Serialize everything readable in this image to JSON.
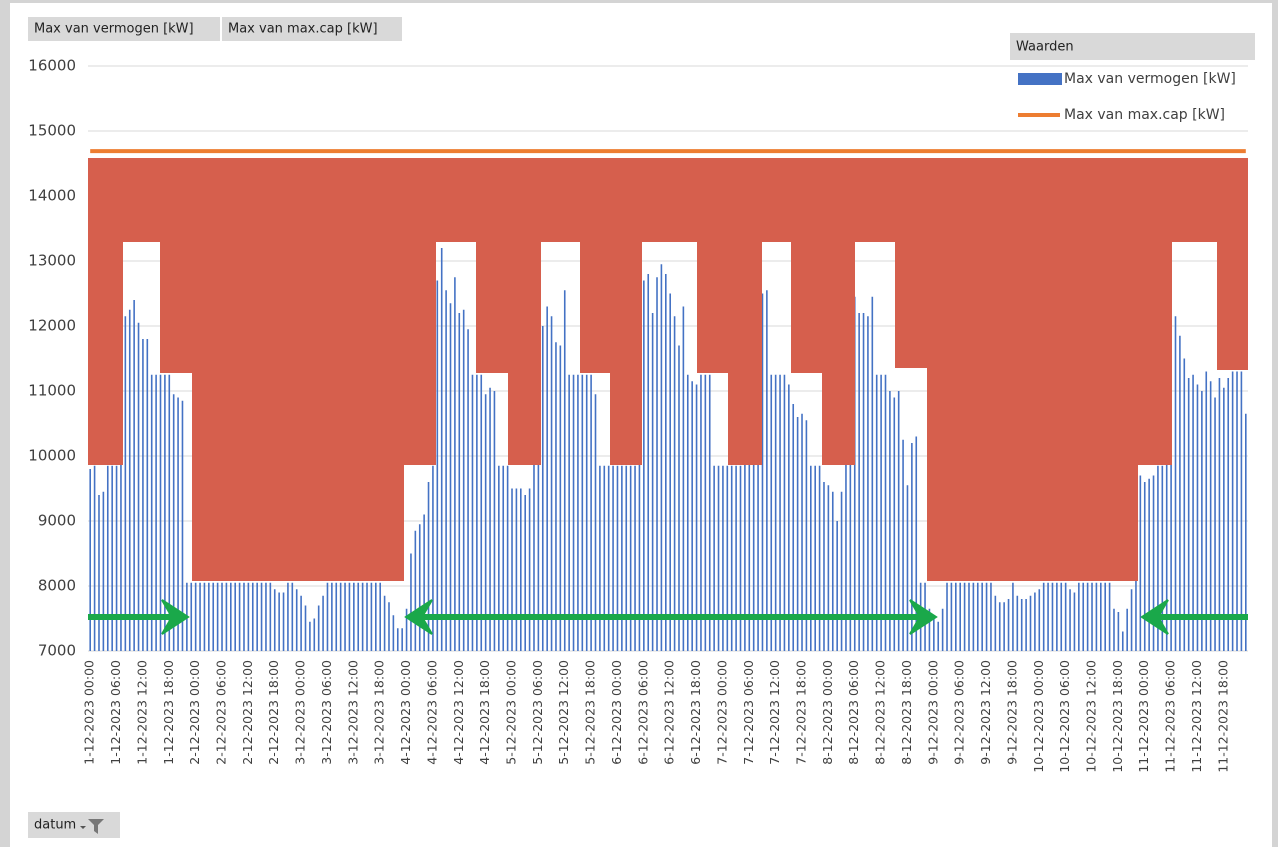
{
  "pivot_buttons": [
    "Max van vermogen [kW]",
    "Max van max.cap [kW]"
  ],
  "filter_button": "datum",
  "legend_title": "Waarden",
  "chart_data": {
    "type": "bar",
    "categories": [
      "1-12-2023 00:00",
      null,
      null,
      null,
      null,
      null,
      "1-12-2023 06:00",
      null,
      null,
      null,
      null,
      null,
      "1-12-2023 12:00",
      null,
      null,
      null,
      null,
      null,
      "1-12-2023 18:00",
      null,
      null,
      null,
      null,
      null,
      "2-12-2023 00:00",
      null,
      null,
      null,
      null,
      null,
      "2-12-2023 06:00",
      null,
      null,
      null,
      null,
      null,
      "2-12-2023 12:00",
      null,
      null,
      null,
      null,
      null,
      "2-12-2023 18:00",
      null,
      null,
      null,
      null,
      null,
      "3-12-2023 00:00",
      null,
      null,
      null,
      null,
      null,
      "3-12-2023 06:00",
      null,
      null,
      null,
      null,
      null,
      "3-12-2023 12:00",
      null,
      null,
      null,
      null,
      null,
      "3-12-2023 18:00",
      null,
      null,
      null,
      null,
      null,
      "4-12-2023 00:00",
      null,
      null,
      null,
      null,
      null,
      "4-12-2023 06:00",
      null,
      null,
      null,
      null,
      null,
      "4-12-2023 12:00",
      null,
      null,
      null,
      null,
      null,
      "4-12-2023 18:00",
      null,
      null,
      null,
      null,
      null,
      "5-12-2023 00:00",
      null,
      null,
      null,
      null,
      null,
      "5-12-2023 06:00",
      null,
      null,
      null,
      null,
      null,
      "5-12-2023 12:00",
      null,
      null,
      null,
      null,
      null,
      "5-12-2023 18:00",
      null,
      null,
      null,
      null,
      null,
      "6-12-2023 00:00",
      null,
      null,
      null,
      null,
      null,
      "6-12-2023 06:00",
      null,
      null,
      null,
      null,
      null,
      "6-12-2023 12:00",
      null,
      null,
      null,
      null,
      null,
      "6-12-2023 18:00",
      null,
      null,
      null,
      null,
      null,
      "7-12-2023 00:00",
      null,
      null,
      null,
      null,
      null,
      "7-12-2023 06:00",
      null,
      null,
      null,
      null,
      null,
      "7-12-2023 12:00",
      null,
      null,
      null,
      null,
      null,
      "7-12-2023 18:00",
      null,
      null,
      null,
      null,
      null,
      "8-12-2023 00:00",
      null,
      null,
      null,
      null,
      null,
      "8-12-2023 06:00",
      null,
      null,
      null,
      null,
      null,
      "8-12-2023 12:00",
      null,
      null,
      null,
      null,
      null,
      "8-12-2023 18:00",
      null,
      null,
      null,
      null,
      null,
      "9-12-2023 00:00",
      null,
      null,
      null,
      null,
      null,
      "9-12-2023 06:00",
      null,
      null,
      null,
      null,
      null,
      "9-12-2023 12:00",
      null,
      null,
      null,
      null,
      null,
      "9-12-2023 18:00",
      null,
      null,
      null,
      null,
      null,
      "10-12-2023 00:00",
      null,
      null,
      null,
      null,
      null,
      "10-12-2023 06:00",
      null,
      null,
      null,
      null,
      null,
      "10-12-2023 12:00",
      null,
      null,
      null,
      null,
      null,
      "10-12-2023 18:00",
      null,
      null,
      null,
      null,
      null,
      "11-12-2023 00:00",
      null,
      null,
      null,
      null,
      null,
      "11-12-2023 06:00",
      null,
      null,
      null,
      null,
      null,
      "11-12-2023 12:00",
      null,
      null,
      null,
      null,
      null,
      "11-12-2023 18:00",
      null,
      null,
      null,
      null,
      null
    ],
    "series": [
      {
        "name": "Max van vermogen [kW]",
        "color": "#4472c4",
        "type": "bar",
        "values": [
          9800,
          9850,
          9400,
          9450,
          9850,
          9850,
          9850,
          12750,
          12150,
          12250,
          12400,
          12050,
          11800,
          11800,
          11250,
          11250,
          11250,
          11250,
          11250,
          10950,
          10900,
          10850,
          8050,
          8050,
          8050,
          8050,
          8050,
          8050,
          8050,
          8050,
          8050,
          8050,
          8050,
          8050,
          8050,
          8050,
          8050,
          8050,
          8050,
          8050,
          8050,
          8050,
          7950,
          7900,
          7900,
          8050,
          8050,
          7950,
          7850,
          7700,
          7450,
          7500,
          7700,
          7850,
          8050,
          8050,
          8050,
          8050,
          8050,
          8050,
          8050,
          8050,
          8050,
          8050,
          8050,
          8050,
          8050,
          7850,
          7750,
          7550,
          7350,
          7350,
          7650,
          8500,
          8850,
          8950,
          9100,
          9600,
          9850,
          12700,
          13200,
          12550,
          12350,
          12750,
          12200,
          12250,
          11950,
          11250,
          11250,
          11250,
          10950,
          11050,
          11000,
          9850,
          9850,
          9850,
          9500,
          9500,
          9500,
          9400,
          9500,
          11600,
          12150,
          12000,
          12300,
          12150,
          11750,
          11700,
          12550,
          11250,
          11250,
          11250,
          11250,
          11250,
          11250,
          10950,
          9850,
          9850,
          9850,
          9850,
          9850,
          9850,
          9850,
          9850,
          9850,
          11900,
          12700,
          12800,
          12200,
          12750,
          12950,
          12800,
          12500,
          12150,
          11700,
          12300,
          11250,
          11150,
          11100,
          11250,
          11250,
          11250,
          9850,
          9850,
          9850,
          9850,
          9850,
          9850,
          9850,
          12500,
          12600,
          12300,
          12900,
          12500,
          12550,
          11250,
          11250,
          11250,
          11250,
          11100,
          10800,
          10600,
          10650,
          10550,
          9850,
          9850,
          9850,
          9600,
          9550,
          9450,
          9000,
          9450,
          10600,
          12300,
          12450,
          12200,
          12200,
          12150,
          12450,
          11250,
          11250,
          11250,
          11000,
          10900,
          11000,
          10250,
          9550,
          10200,
          10300,
          8050,
          8050,
          7650,
          7500,
          7450,
          7650,
          8050,
          8050,
          8050,
          8050,
          8050,
          8050,
          8050,
          8050,
          8050,
          8050,
          8050,
          7850,
          7750,
          7750,
          7800,
          8050,
          7850,
          7800,
          7800,
          7850,
          7900,
          7950,
          8050,
          8050,
          8050,
          8050,
          8050,
          8050,
          7950,
          7900,
          8050,
          8050,
          8050,
          8050,
          8050,
          8050,
          8050,
          8050,
          7650,
          7600,
          7300,
          7650,
          7950,
          9100,
          9700,
          9600,
          9650,
          9700,
          9850,
          9850,
          12300,
          12400,
          12150,
          11850,
          11500,
          11200,
          11250,
          11100,
          11000,
          11300,
          11150,
          10900,
          11200,
          11050,
          11200,
          11300,
          11300,
          11300,
          10650
        ]
      },
      {
        "name": "Max van max.cap [kW]",
        "color": "#ed7d31",
        "type": "line",
        "values": [
          14690,
          14690,
          14690,
          14690,
          14690,
          14690,
          14690,
          14690,
          14690,
          14690,
          14690,
          14690,
          14690,
          14690,
          14690,
          14690,
          14690,
          14690,
          14690,
          14690,
          14690,
          14690,
          14690,
          14690,
          14690,
          14690,
          14690,
          14690,
          14690,
          14690,
          14690,
          14690,
          14690,
          14690,
          14690,
          14690,
          14690,
          14690,
          14690,
          14690,
          14690,
          14690,
          14690,
          14690,
          14690,
          14690,
          14690,
          14690,
          14690,
          14690,
          14690,
          14690,
          14690,
          14690,
          14690,
          14690,
          14690,
          14690,
          14690,
          14690,
          14690,
          14690,
          14690,
          14690,
          14690,
          14690,
          14690,
          14690,
          14690,
          14690,
          14690,
          14690,
          14690,
          14690,
          14690,
          14690,
          14690,
          14690,
          14690,
          14690,
          14690,
          14690,
          14690,
          14690,
          14690,
          14690,
          14690,
          14690,
          14690,
          14690,
          14690,
          14690,
          14690,
          14690,
          14690,
          14690,
          14690,
          14690,
          14690,
          14690,
          14690,
          14690,
          14690,
          14690,
          14690,
          14690,
          14690,
          14690,
          14690,
          14690,
          14690,
          14690,
          14690,
          14690,
          14690,
          14690,
          14690,
          14690,
          14690,
          14690,
          14690,
          14690,
          14690,
          14690,
          14690,
          14690,
          14690,
          14690,
          14690,
          14690,
          14690,
          14690,
          14690,
          14690,
          14690,
          14690,
          14690,
          14690,
          14690,
          14690,
          14690,
          14690,
          14690,
          14690,
          14690,
          14690,
          14690,
          14690,
          14690,
          14690,
          14690,
          14690,
          14690,
          14690,
          14690,
          14690,
          14690,
          14690,
          14690,
          14690,
          14690,
          14690,
          14690,
          14690,
          14690,
          14690,
          14690,
          14690,
          14690,
          14690,
          14690,
          14690,
          14690,
          14690,
          14690,
          14690,
          14690,
          14690,
          14690,
          14690,
          14690,
          14690,
          14690,
          14690,
          14690,
          14690,
          14690,
          14690,
          14690,
          14690,
          14690,
          14690,
          14690,
          14690,
          14690,
          14690,
          14690,
          14690,
          14690,
          14690,
          14690,
          14690,
          14690,
          14690,
          14690,
          14690,
          14690,
          14690,
          14690,
          14690,
          14690,
          14690,
          14690,
          14690,
          14690,
          14690,
          14690,
          14690,
          14690,
          14690,
          14690,
          14690,
          14690,
          14690,
          14690,
          14690,
          14690,
          14690,
          14690,
          14690,
          14690,
          14690,
          14690,
          14690,
          14690,
          14690,
          14690,
          14690,
          14690,
          14690,
          14690,
          14690,
          14690,
          14690,
          14690,
          14690,
          14690,
          14690,
          14690,
          14690,
          14690,
          14690,
          14690,
          14690,
          14690,
          14690,
          14690,
          14690,
          14690,
          14690,
          14690,
          14690,
          14690,
          14690
        ]
      }
    ],
    "ylim": [
      7000,
      16000
    ],
    "yticks": [
      7000,
      8000,
      9000,
      10000,
      11000,
      12000,
      13000,
      14000,
      15000,
      16000
    ],
    "grid": true,
    "legend": "top-right"
  }
}
